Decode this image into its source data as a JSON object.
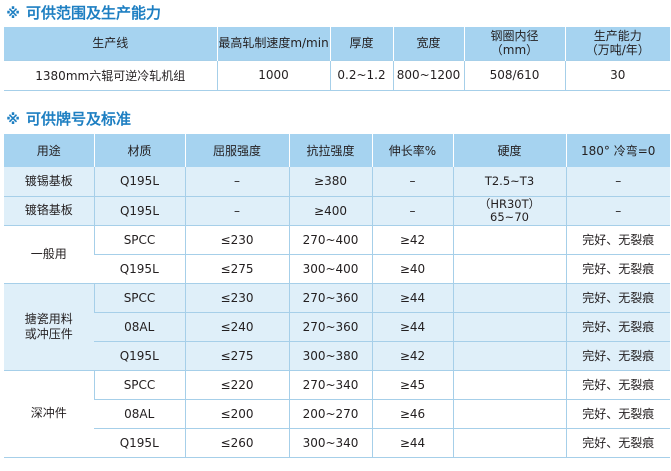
{
  "section1": {
    "marker": "※",
    "title": "可供范围及生产能力",
    "headers": [
      "生产线",
      "最高轧制速度m/min",
      "厚度",
      "宽度",
      "钢圈内径\n（mm）",
      "生产能力\n（万吨/年）"
    ],
    "rows": [
      [
        "1380mm六辊可逆冷轧机组",
        "1000",
        "0.2~1.2",
        "800~1200",
        "508/610",
        "30"
      ]
    ]
  },
  "section2": {
    "marker": "※",
    "title": "可供牌号及标准",
    "headers": [
      "用途",
      "材质",
      "屈服强度",
      "抗拉强度",
      "伸长率%",
      "硬度",
      "180° 冷弯=0"
    ],
    "groups": [
      {
        "usage": "镀锡基板",
        "shaded": true,
        "rows": [
          {
            "material": "Q195L",
            "yield": "–",
            "tensile": "≥380",
            "elong": "–",
            "hardness": "T2.5~T3",
            "bend": "–"
          }
        ]
      },
      {
        "usage": "镀铬基板",
        "shaded": true,
        "rows": [
          {
            "material": "Q195L",
            "yield": "–",
            "tensile": "≥400",
            "elong": "–",
            "hardness": "（HR30T）\n65~70",
            "bend": "–"
          }
        ]
      },
      {
        "usage": "一般用",
        "shaded": false,
        "rows": [
          {
            "material": "SPCC",
            "yield": "≤230",
            "tensile": "270~400",
            "elong": "≥42",
            "hardness": "",
            "bend": "完好、无裂痕"
          },
          {
            "material": "Q195L",
            "yield": "≤275",
            "tensile": "300~400",
            "elong": "≥40",
            "hardness": "",
            "bend": "完好、无裂痕"
          }
        ]
      },
      {
        "usage": "搪瓷用料\n或冲压件",
        "shaded": true,
        "rows": [
          {
            "material": "SPCC",
            "yield": "≤230",
            "tensile": "270~360",
            "elong": "≥44",
            "hardness": "",
            "bend": "完好、无裂痕"
          },
          {
            "material": "08AL",
            "yield": "≤240",
            "tensile": "270~360",
            "elong": "≥44",
            "hardness": "",
            "bend": "完好、无裂痕"
          },
          {
            "material": "Q195L",
            "yield": "≤275",
            "tensile": "300~380",
            "elong": "≥42",
            "hardness": "",
            "bend": "完好、无裂痕"
          }
        ]
      },
      {
        "usage": "深冲件",
        "shaded": false,
        "rows": [
          {
            "material": "SPCC",
            "yield": "≤220",
            "tensile": "270~340",
            "elong": "≥45",
            "hardness": "",
            "bend": "完好、无裂痕"
          },
          {
            "material": "08AL",
            "yield": "≤200",
            "tensile": "200~270",
            "elong": "≥46",
            "hardness": "",
            "bend": "完好、无裂痕"
          },
          {
            "material": "Q195L",
            "yield": "≤260",
            "tensile": "300~340",
            "elong": "≥44",
            "hardness": "",
            "bend": "完好、无裂痕"
          }
        ]
      }
    ]
  },
  "colors": {
    "title_blue": "#1e7fc2",
    "header_bg": "#a6d3f0",
    "shade_bg": "#dfeff9",
    "grid": "#a6cfe9"
  }
}
